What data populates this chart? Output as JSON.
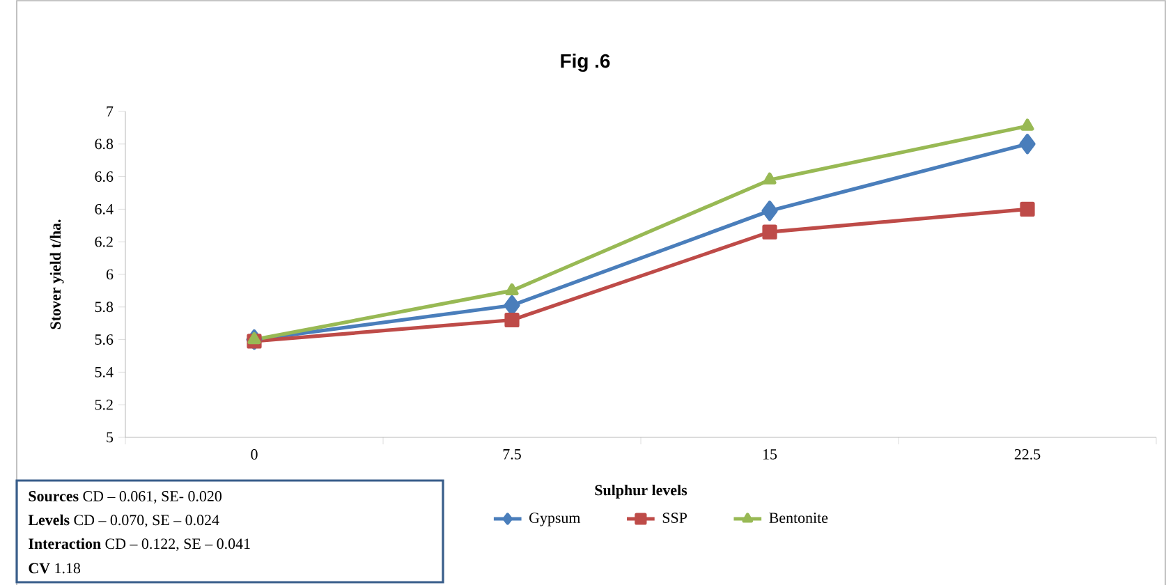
{
  "chart_data": {
    "type": "line",
    "title": "Fig .6",
    "xlabel": "Sulphur levels",
    "ylabel": "Stover yield t/ha.",
    "categories": [
      "0",
      "7.5",
      "15",
      "22.5"
    ],
    "series": [
      {
        "name": "Gypsum",
        "color": "#4a7ebb",
        "marker": "diamond",
        "values": [
          5.6,
          5.81,
          6.39,
          6.8
        ]
      },
      {
        "name": "SSP",
        "color": "#be4b48",
        "marker": "square",
        "values": [
          5.59,
          5.72,
          6.26,
          6.4
        ]
      },
      {
        "name": "Bentonite",
        "color": "#98b954",
        "marker": "triangle",
        "values": [
          5.6,
          5.9,
          6.58,
          6.91
        ]
      }
    ],
    "ylim": [
      5,
      7
    ],
    "yticks": [
      5,
      5.2,
      5.4,
      5.6,
      5.8,
      6,
      6.2,
      6.4,
      6.6,
      6.8,
      7
    ],
    "legend": "bottom",
    "annotations": [
      "**Sources**   CD – 0.061, SE- 0.020",
      "**Levels**   CD – 0.070, SE – 0.024",
      "**Interaction**   CD – 0.122, SE – 0.041",
      "**CV**   1.18"
    ]
  }
}
